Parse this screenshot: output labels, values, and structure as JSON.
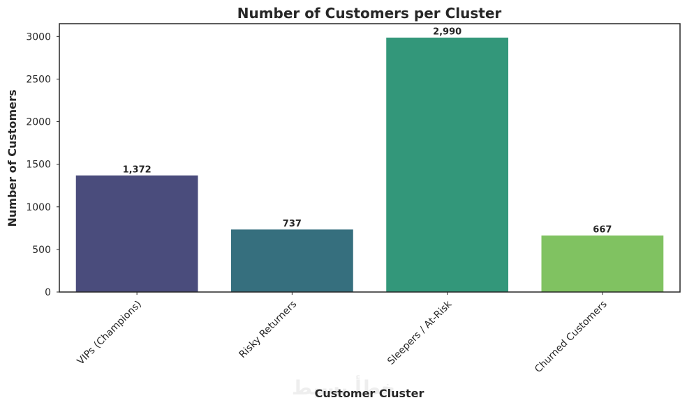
{
  "watermark": "خطأ بسيط",
  "chart_data": {
    "type": "bar",
    "title": "Number of Customers per Cluster",
    "xlabel": "Customer Cluster",
    "ylabel": "Number of Customers",
    "categories": [
      "VIPs (Champions)",
      "Risky Returners",
      "Sleepers / At-Risk",
      "Churned Customers"
    ],
    "values": [
      1372,
      737,
      2990,
      667
    ],
    "value_labels": [
      "1,372",
      "737",
      "2,990",
      "667"
    ],
    "colors": [
      "#4a4c7c",
      "#366f7e",
      "#33977a",
      "#80c261"
    ],
    "ylim": [
      0,
      3150
    ],
    "yticks": [
      0,
      500,
      1000,
      1500,
      2000,
      2500,
      3000
    ],
    "ytick_labels": [
      "0",
      "500",
      "1000",
      "1500",
      "2000",
      "2500",
      "3000"
    ],
    "grid": false,
    "legend": false
  }
}
